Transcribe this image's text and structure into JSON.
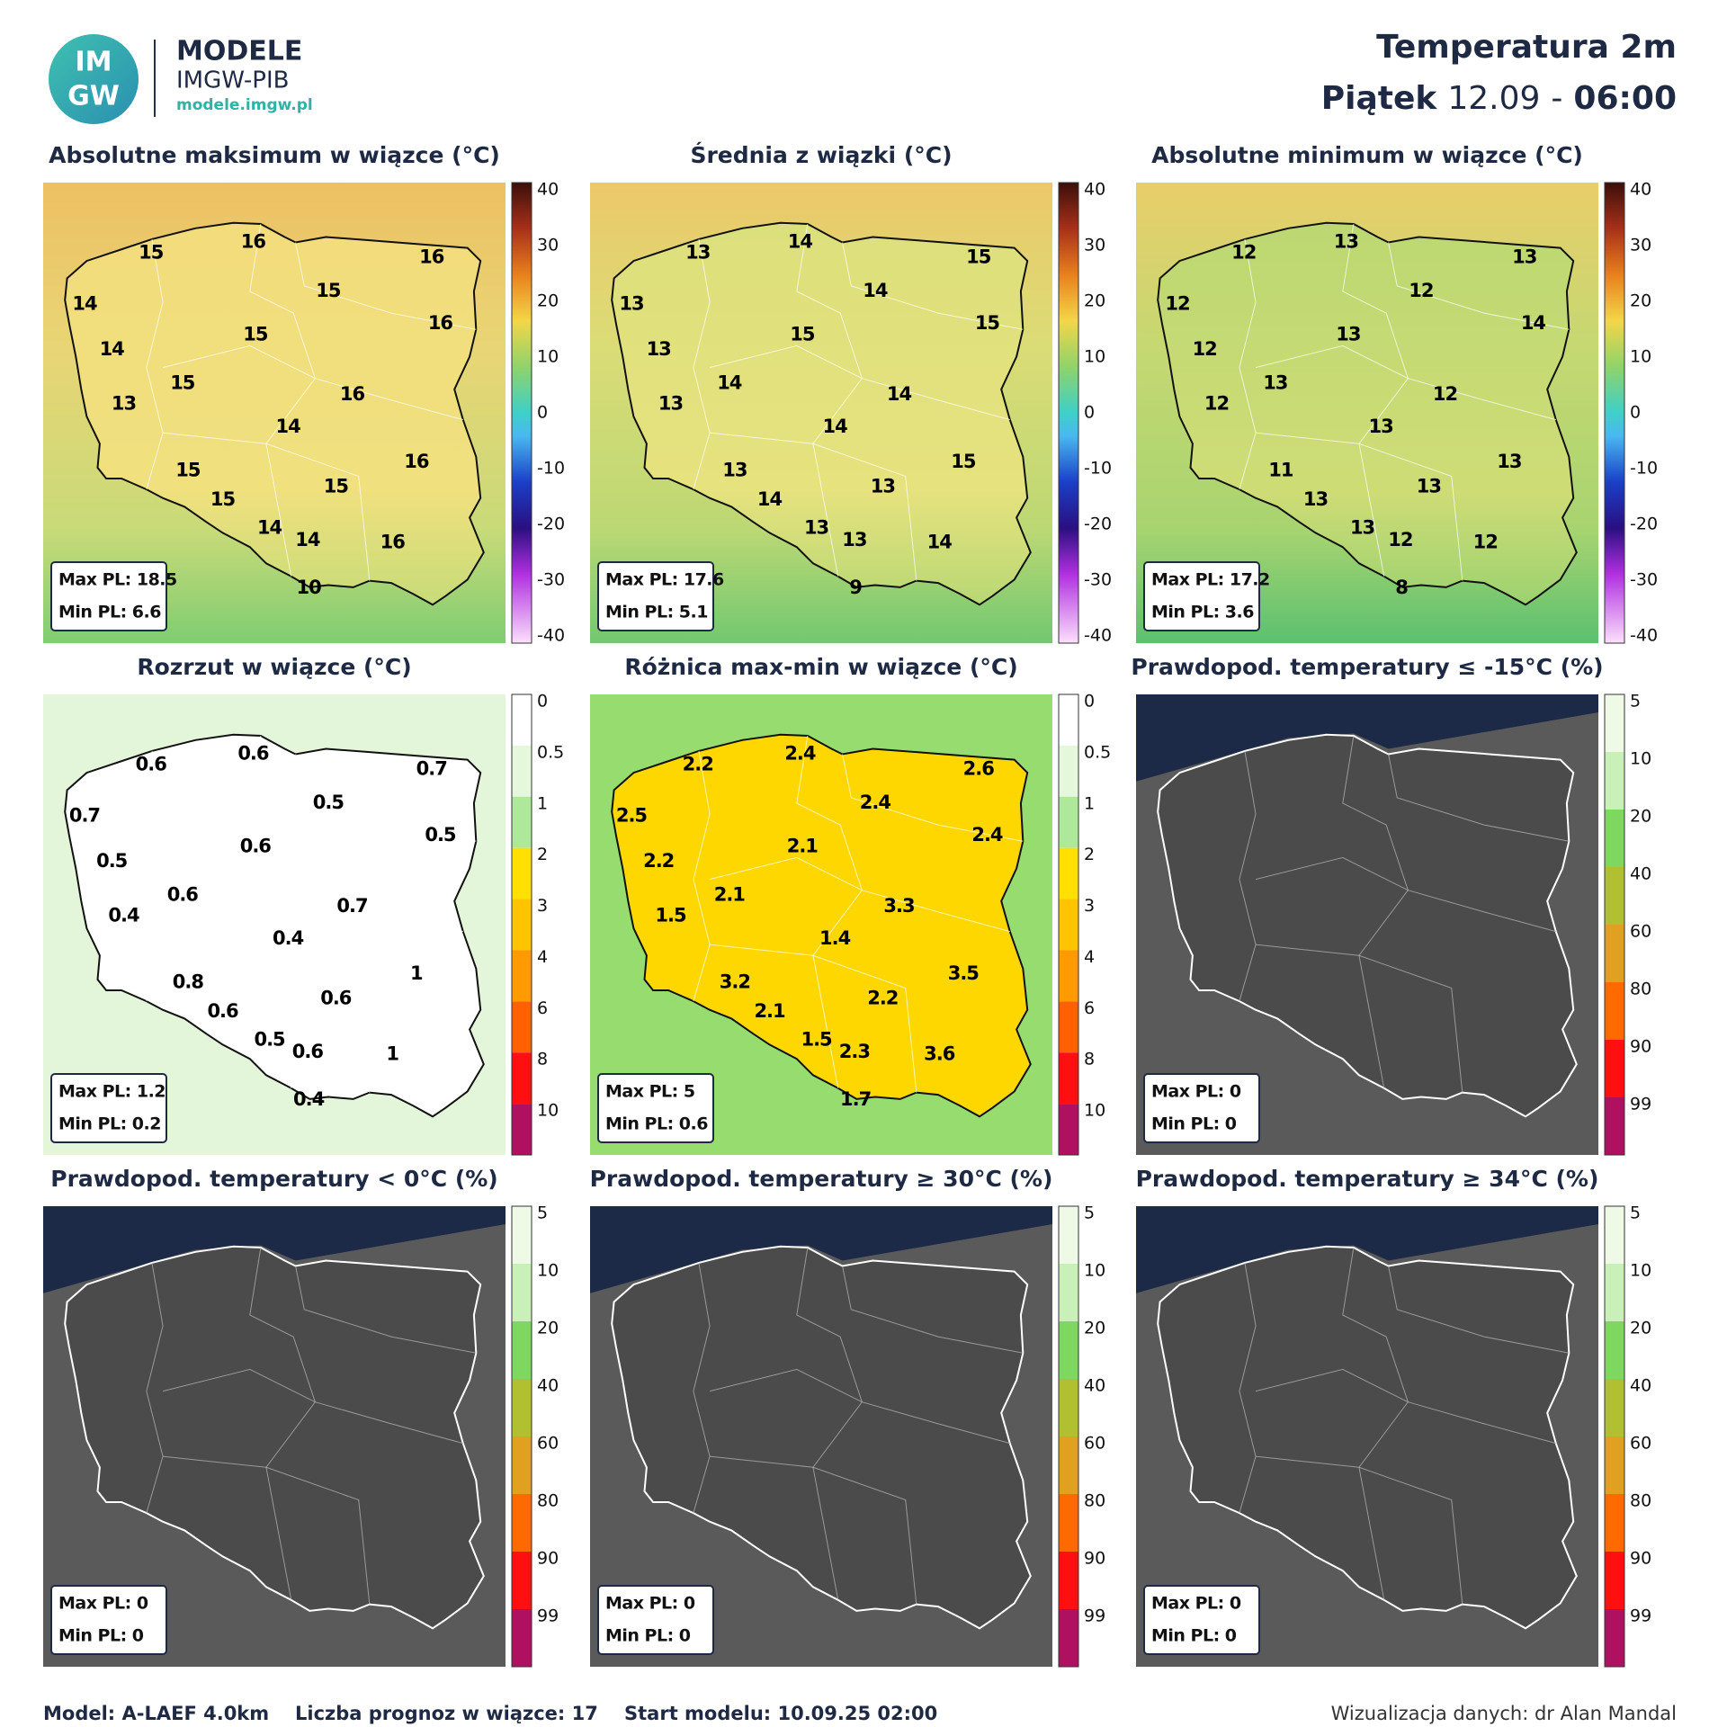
{
  "header": {
    "logo_top": "IM",
    "logo_bottom": "GW",
    "brand": "MODELE",
    "brand_sub": "IMGW-PIB",
    "url": "modele.imgw.pl",
    "title": "Temperatura 2m",
    "day": "Piątek",
    "date": "12.09",
    "separator": "-",
    "time": "06:00"
  },
  "colorbars": {
    "temperature": [
      "40",
      "30",
      "20",
      "10",
      "0",
      "-10",
      "-20",
      "-30",
      "-40"
    ],
    "spread": [
      "0",
      "0.5",
      "1",
      "2",
      "3",
      "4",
      "6",
      "8",
      "10"
    ],
    "probability": [
      "5",
      "10",
      "20",
      "40",
      "60",
      "80",
      "90",
      "99"
    ]
  },
  "panels": [
    {
      "title": "Absolutne maksimum w wiązce (°C)",
      "style": "temperature",
      "labels": [
        "15",
        "16",
        "16",
        "14",
        "15",
        "16",
        "15",
        "14",
        "15",
        "16",
        "13",
        "14",
        "16",
        "15",
        "15",
        "15",
        "14",
        "14",
        "16",
        "10"
      ],
      "max": "Max PL: 18.5",
      "min": "Min PL: 6.6"
    },
    {
      "title": "Średnia z wiązki (°C)",
      "style": "temperature",
      "labels": [
        "13",
        "14",
        "15",
        "13",
        "14",
        "15",
        "15",
        "13",
        "14",
        "14",
        "13",
        "14",
        "15",
        "13",
        "13",
        "14",
        "13",
        "13",
        "14",
        "9"
      ],
      "max": "Max PL: 17.6",
      "min": "Min PL: 5.1"
    },
    {
      "title": "Absolutne minimum w wiązce (°C)",
      "style": "temperature",
      "labels": [
        "12",
        "13",
        "13",
        "12",
        "12",
        "14",
        "13",
        "12",
        "13",
        "12",
        "12",
        "13",
        "13",
        "11",
        "13",
        "13",
        "13",
        "12",
        "12",
        "8"
      ],
      "max": "Max PL: 17.2",
      "min": "Min PL: 3.6"
    },
    {
      "title": "Rozrzut w wiązce (°C)",
      "style": "spread",
      "labels": [
        "0.6",
        "0.6",
        "0.7",
        "0.7",
        "0.5",
        "0.5",
        "0.6",
        "0.5",
        "0.6",
        "0.7",
        "0.4",
        "0.4",
        "1",
        "0.8",
        "0.6",
        "0.6",
        "0.5",
        "0.6",
        "1",
        "0.4"
      ],
      "max": "Max PL: 1.2",
      "min": "Min PL: 0.2"
    },
    {
      "title": "Różnica max-min w wiązce (°C)",
      "style": "range",
      "labels": [
        "2.2",
        "2.4",
        "2.6",
        "2.5",
        "2.4",
        "2.4",
        "2.1",
        "2.2",
        "2.1",
        "3.3",
        "1.5",
        "1.4",
        "3.5",
        "3.2",
        "2.2",
        "2.1",
        "1.5",
        "2.3",
        "3.6",
        "1.7"
      ],
      "max": "Max PL: 5",
      "min": "Min PL: 0.6"
    },
    {
      "title": "Prawdopod. temperatury ≤ -15°C (%)",
      "style": "probability",
      "labels": [],
      "max": "Max PL: 0",
      "min": "Min PL: 0"
    },
    {
      "title": "Prawdopod. temperatury < 0°C (%)",
      "style": "probability",
      "labels": [],
      "max": "Max PL: 0",
      "min": "Min PL: 0"
    },
    {
      "title": "Prawdopod. temperatury ≥ 30°C (%)",
      "style": "probability",
      "labels": [],
      "max": "Max PL: 0",
      "min": "Min PL: 0"
    },
    {
      "title": "Prawdopod. temperatury ≥ 34°C (%)",
      "style": "probability",
      "labels": [],
      "max": "Max PL: 0",
      "min": "Min PL: 0"
    }
  ],
  "footer": {
    "model": "Model: A-LAEF 4.0km",
    "members": "Liczba prognoz w wiązce: 17",
    "start": "Start modelu: 10.09.25  02:00",
    "credit": "Wizualizacja danych: dr Alan Mandal"
  }
}
